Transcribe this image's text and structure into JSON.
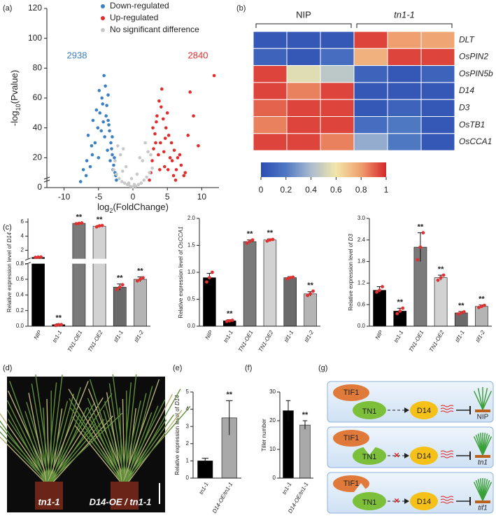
{
  "panel_labels": [
    "(a)",
    "(b)",
    "(c)",
    "(d)",
    "(e)",
    "(f)",
    "(g)"
  ],
  "chart_data": [
    {
      "type": "scatter",
      "xlabel_parts": [
        "log",
        "2",
        "(FoldChange)"
      ],
      "ylabel_parts": [
        "-log",
        "10",
        "(Pvalue)"
      ],
      "xlim": [
        -12.5,
        12.5
      ],
      "ylim": [
        0,
        120
      ],
      "xticks": [
        -10,
        -5,
        0,
        5,
        10
      ],
      "yticks": [
        0,
        20,
        40,
        60,
        80,
        100,
        120
      ],
      "counts": {
        "down": 2938,
        "up": 2840
      },
      "series": [
        {
          "name": "Down-regulated",
          "color": "#3b7fc4",
          "x": [
            -7.6,
            -6.8,
            -6.2,
            -5.9,
            -5.5,
            -5.1,
            -4.8,
            -4.5,
            -4.2,
            -4.0,
            -3.8,
            -3.6,
            -3.4,
            -3.2,
            -3.0,
            -2.8,
            -2.6,
            -2.4,
            -6.5,
            -5.8,
            -4.9,
            -4.4,
            -3.9,
            -3.5,
            -3.1,
            -2.7,
            -7.2,
            -6.0,
            -5.3,
            -4.6,
            -4.1,
            -3.7,
            -3.3,
            -2.9,
            -2.5,
            -5.0,
            -4.3,
            -3.6,
            -6.7,
            -3.0
          ],
          "y": [
            4,
            8,
            14,
            22,
            30,
            40,
            50,
            60,
            75,
            68,
            55,
            45,
            38,
            30,
            22,
            15,
            10,
            5,
            35,
            45,
            65,
            56,
            48,
            42,
            26,
            20,
            12,
            28,
            52,
            38,
            34,
            25,
            18,
            12,
            8,
            20,
            44,
            62,
            18,
            34
          ]
        },
        {
          "name": "Up-regulated",
          "color": "#e32b2b",
          "x": [
            2.4,
            2.6,
            2.8,
            3.0,
            3.2,
            3.5,
            3.8,
            4.1,
            4.4,
            4.8,
            5.2,
            5.6,
            6.0,
            6.5,
            7.0,
            7.6,
            8.0,
            8.8,
            9.5,
            11.8,
            3.3,
            3.7,
            4.2,
            4.6,
            5.0,
            5.4,
            5.9,
            6.3,
            6.8,
            7.4,
            2.9,
            3.4,
            4.0,
            4.5,
            5.1,
            5.7,
            6.2,
            8.3,
            3.9,
            4.7
          ],
          "y": [
            5,
            10,
            18,
            26,
            36,
            48,
            58,
            54,
            46,
            40,
            35,
            30,
            25,
            20,
            15,
            10,
            35,
            48,
            28,
            75,
            30,
            22,
            66,
            14,
            50,
            20,
            8,
            12,
            22,
            8,
            40,
            44,
            30,
            24,
            12,
            18,
            5,
            64,
            12,
            33
          ]
        },
        {
          "name": "No significant difference",
          "color": "#c8c8c8",
          "x": [
            -2.8,
            -2.4,
            -2.0,
            -1.6,
            -1.2,
            -0.8,
            -0.4,
            0,
            0.4,
            0.8,
            1.2,
            1.6,
            2.0,
            2.4,
            2.8,
            -1.8,
            -1.0,
            -0.2,
            0.6,
            1.4,
            2.2,
            -2.2,
            -1.4,
            1.0,
            1.8,
            -0.6,
            0.2,
            -2.6,
            2.6,
            -1.5
          ],
          "y": [
            12,
            9,
            6,
            4,
            3,
            2,
            1,
            0.5,
            1,
            2,
            3,
            5,
            7,
            10,
            13,
            22,
            14,
            6,
            9,
            18,
            24,
            28,
            26,
            20,
            30,
            3,
            2,
            18,
            22,
            11
          ]
        }
      ]
    },
    {
      "type": "heatmap",
      "column_groups": [
        "NIP",
        "tn1-1"
      ],
      "rows": [
        "DLT",
        "OsPIN2",
        "OsPIN5b",
        "D14",
        "D3",
        "OsTB1",
        "OsCCA1"
      ],
      "values": [
        [
          0.05,
          0.05,
          0.05,
          0.95,
          0.8,
          0.78
        ],
        [
          0.1,
          0.05,
          0.15,
          0.75,
          0.95,
          0.95
        ],
        [
          0.95,
          0.55,
          0.45,
          0.1,
          0.05,
          0.1
        ],
        [
          0.95,
          0.85,
          0.95,
          0.05,
          0.05,
          0.05
        ],
        [
          0.9,
          0.95,
          0.95,
          0.05,
          0.1,
          0.05
        ],
        [
          0.85,
          0.95,
          0.95,
          0.15,
          0.2,
          0.05
        ],
        [
          0.95,
          0.95,
          0.85,
          0.35,
          0.2,
          0.05
        ]
      ],
      "clim": [
        0,
        1
      ],
      "colorscale": [
        "#2c4db3",
        "#4f78c3",
        "#a9bccf",
        "#f2e6a9",
        "#ef9f6f",
        "#d7262b"
      ],
      "colorbar_ticks": [
        0,
        0.2,
        0.4,
        0.6,
        0.8,
        1
      ]
    },
    {
      "type": "bar",
      "ylabel_parts": [
        "Relative expression level of ",
        "D14"
      ],
      "categories": [
        "NIP",
        "tn1-1",
        "TN1-OE1",
        "TN1-OE2",
        "tif1-1",
        "tif1-2"
      ],
      "colors": [
        "#000000",
        "#000000",
        "#7a7a7a",
        "#d2d2d2",
        "#6a6a6a",
        "#b4b4b4"
      ],
      "values": [
        1.0,
        0.02,
        5.8,
        5.4,
        0.5,
        0.6
      ],
      "errors": [
        0.03,
        0.01,
        0.06,
        0.1,
        0.04,
        0.03
      ],
      "replicates": [
        [
          1.0,
          1.02,
          1.05
        ],
        [
          0.01,
          0.02,
          0.02
        ],
        [
          5.75,
          5.8,
          5.85
        ],
        [
          5.3,
          5.45,
          5.5
        ],
        [
          0.47,
          0.5,
          0.53
        ],
        [
          0.58,
          0.6,
          0.62
        ]
      ],
      "annotations": [
        null,
        "**",
        "**",
        "**",
        "**",
        "**"
      ],
      "ylim": [
        0,
        6.5
      ],
      "ybreak": 0.8,
      "yticks": [
        {
          "value": 0,
          "label": "0.0"
        },
        {
          "value": 0.2,
          "label": "0.2"
        },
        {
          "value": 0.4,
          "label": "0.4"
        },
        {
          "value": 0.6,
          "label": "0.6"
        },
        {
          "value": 0.8,
          "label": "0.8"
        },
        2,
        4,
        6
      ]
    },
    {
      "type": "bar",
      "ylabel_parts": [
        "Relative expression level of ",
        "OsCCA1"
      ],
      "categories": [
        "NIP",
        "tn1-1",
        "TN1-OE1",
        "TN1-OE2",
        "tif1-1",
        "tif1-2"
      ],
      "colors": [
        "#000000",
        "#000000",
        "#7a7a7a",
        "#d2d2d2",
        "#6a6a6a",
        "#b4b4b4"
      ],
      "values": [
        0.9,
        0.1,
        1.57,
        1.6,
        0.9,
        0.6
      ],
      "errors": [
        0.08,
        0.02,
        0.03,
        0.02,
        0.02,
        0.04
      ],
      "replicates": [
        [
          0.82,
          0.9,
          1.0
        ],
        [
          0.09,
          0.1,
          0.11
        ],
        [
          1.54,
          1.57,
          1.6
        ],
        [
          1.58,
          1.6,
          1.61
        ],
        [
          0.88,
          0.9,
          0.91
        ],
        [
          0.57,
          0.6,
          0.65
        ]
      ],
      "annotations": [
        null,
        "**",
        "**",
        "**",
        null,
        "**"
      ],
      "ylim": [
        0,
        2.0
      ],
      "yticks": [
        {
          "value": 0,
          "label": "0.0"
        },
        {
          "value": 0.5,
          "label": "0.5"
        },
        {
          "value": 1.0,
          "label": "1.0"
        },
        {
          "value": 1.5,
          "label": "1.5"
        },
        {
          "value": 2.0,
          "label": "2.0"
        }
      ]
    },
    {
      "type": "bar",
      "ylabel_parts": [
        "Relative expression level of ",
        "D3"
      ],
      "categories": [
        "NIP",
        "tn1-1",
        "TN1-OE1",
        "TN1-OE2",
        "tif1-1",
        "tif1-2"
      ],
      "colors": [
        "#000000",
        "#000000",
        "#7a7a7a",
        "#d2d2d2",
        "#6a6a6a",
        "#b4b4b4"
      ],
      "values": [
        1.0,
        0.42,
        2.2,
        1.35,
        0.37,
        0.55
      ],
      "errors": [
        0.1,
        0.08,
        0.4,
        0.07,
        0.04,
        0.04
      ],
      "replicates": [
        [
          0.95,
          1.0,
          1.1
        ],
        [
          0.35,
          0.42,
          0.5
        ],
        [
          1.85,
          2.2,
          2.6
        ],
        [
          1.28,
          1.35,
          1.42
        ],
        [
          0.34,
          0.37,
          0.4
        ],
        [
          0.52,
          0.55,
          0.58
        ]
      ],
      "annotations": [
        null,
        "**",
        "**",
        "**",
        "**",
        "**"
      ],
      "ylim": [
        0,
        3.0
      ],
      "yticks": [
        {
          "value": 0,
          "label": "0.0"
        },
        {
          "value": 0.6,
          "label": "0.6"
        },
        {
          "value": 1.2,
          "label": "1.2"
        },
        {
          "value": 1.8,
          "label": "1.8"
        },
        {
          "value": 2.4,
          "label": "2.4"
        },
        {
          "value": 3.0,
          "label": "3.0"
        }
      ]
    },
    {
      "type": "bar",
      "ylabel_parts": [
        "Relative expression level of ",
        "D14"
      ],
      "categories": [
        "tn1-1",
        "D14-OE/tn1-1"
      ],
      "colors": [
        "#000000",
        "#a8a8a8"
      ],
      "values": [
        1.0,
        3.5
      ],
      "errors": [
        0.15,
        1.0
      ],
      "annotations": [
        null,
        "**"
      ],
      "ylim": [
        0,
        5
      ],
      "yticks": [
        0,
        1,
        2,
        3,
        4,
        5
      ]
    },
    {
      "type": "bar",
      "ylabel": "Tiller number",
      "categories": [
        "tn1-1",
        "D14-OE/tn1-1"
      ],
      "colors": [
        "#000000",
        "#a8a8a8"
      ],
      "values": [
        23.5,
        18.5
      ],
      "errors": [
        3.5,
        1.5
      ],
      "annotations": [
        null,
        "**"
      ],
      "ylim": [
        0,
        30
      ],
      "yticks": [
        0,
        10,
        20,
        30
      ]
    }
  ],
  "photo": {
    "labels": [
      "tn1-1",
      "D14-OE / tn1-1"
    ]
  },
  "diagram": {
    "rows": [
      {
        "tif": "TIF1",
        "tn": "TN1",
        "target": "D14",
        "plant": "NIP"
      },
      {
        "tif": "TIF1",
        "tn": "TN1",
        "target": "D14",
        "plant": "tn1"
      },
      {
        "tif": "TIF1",
        "tn": "TN1",
        "target": "D14",
        "plant": "tif1"
      }
    ]
  }
}
